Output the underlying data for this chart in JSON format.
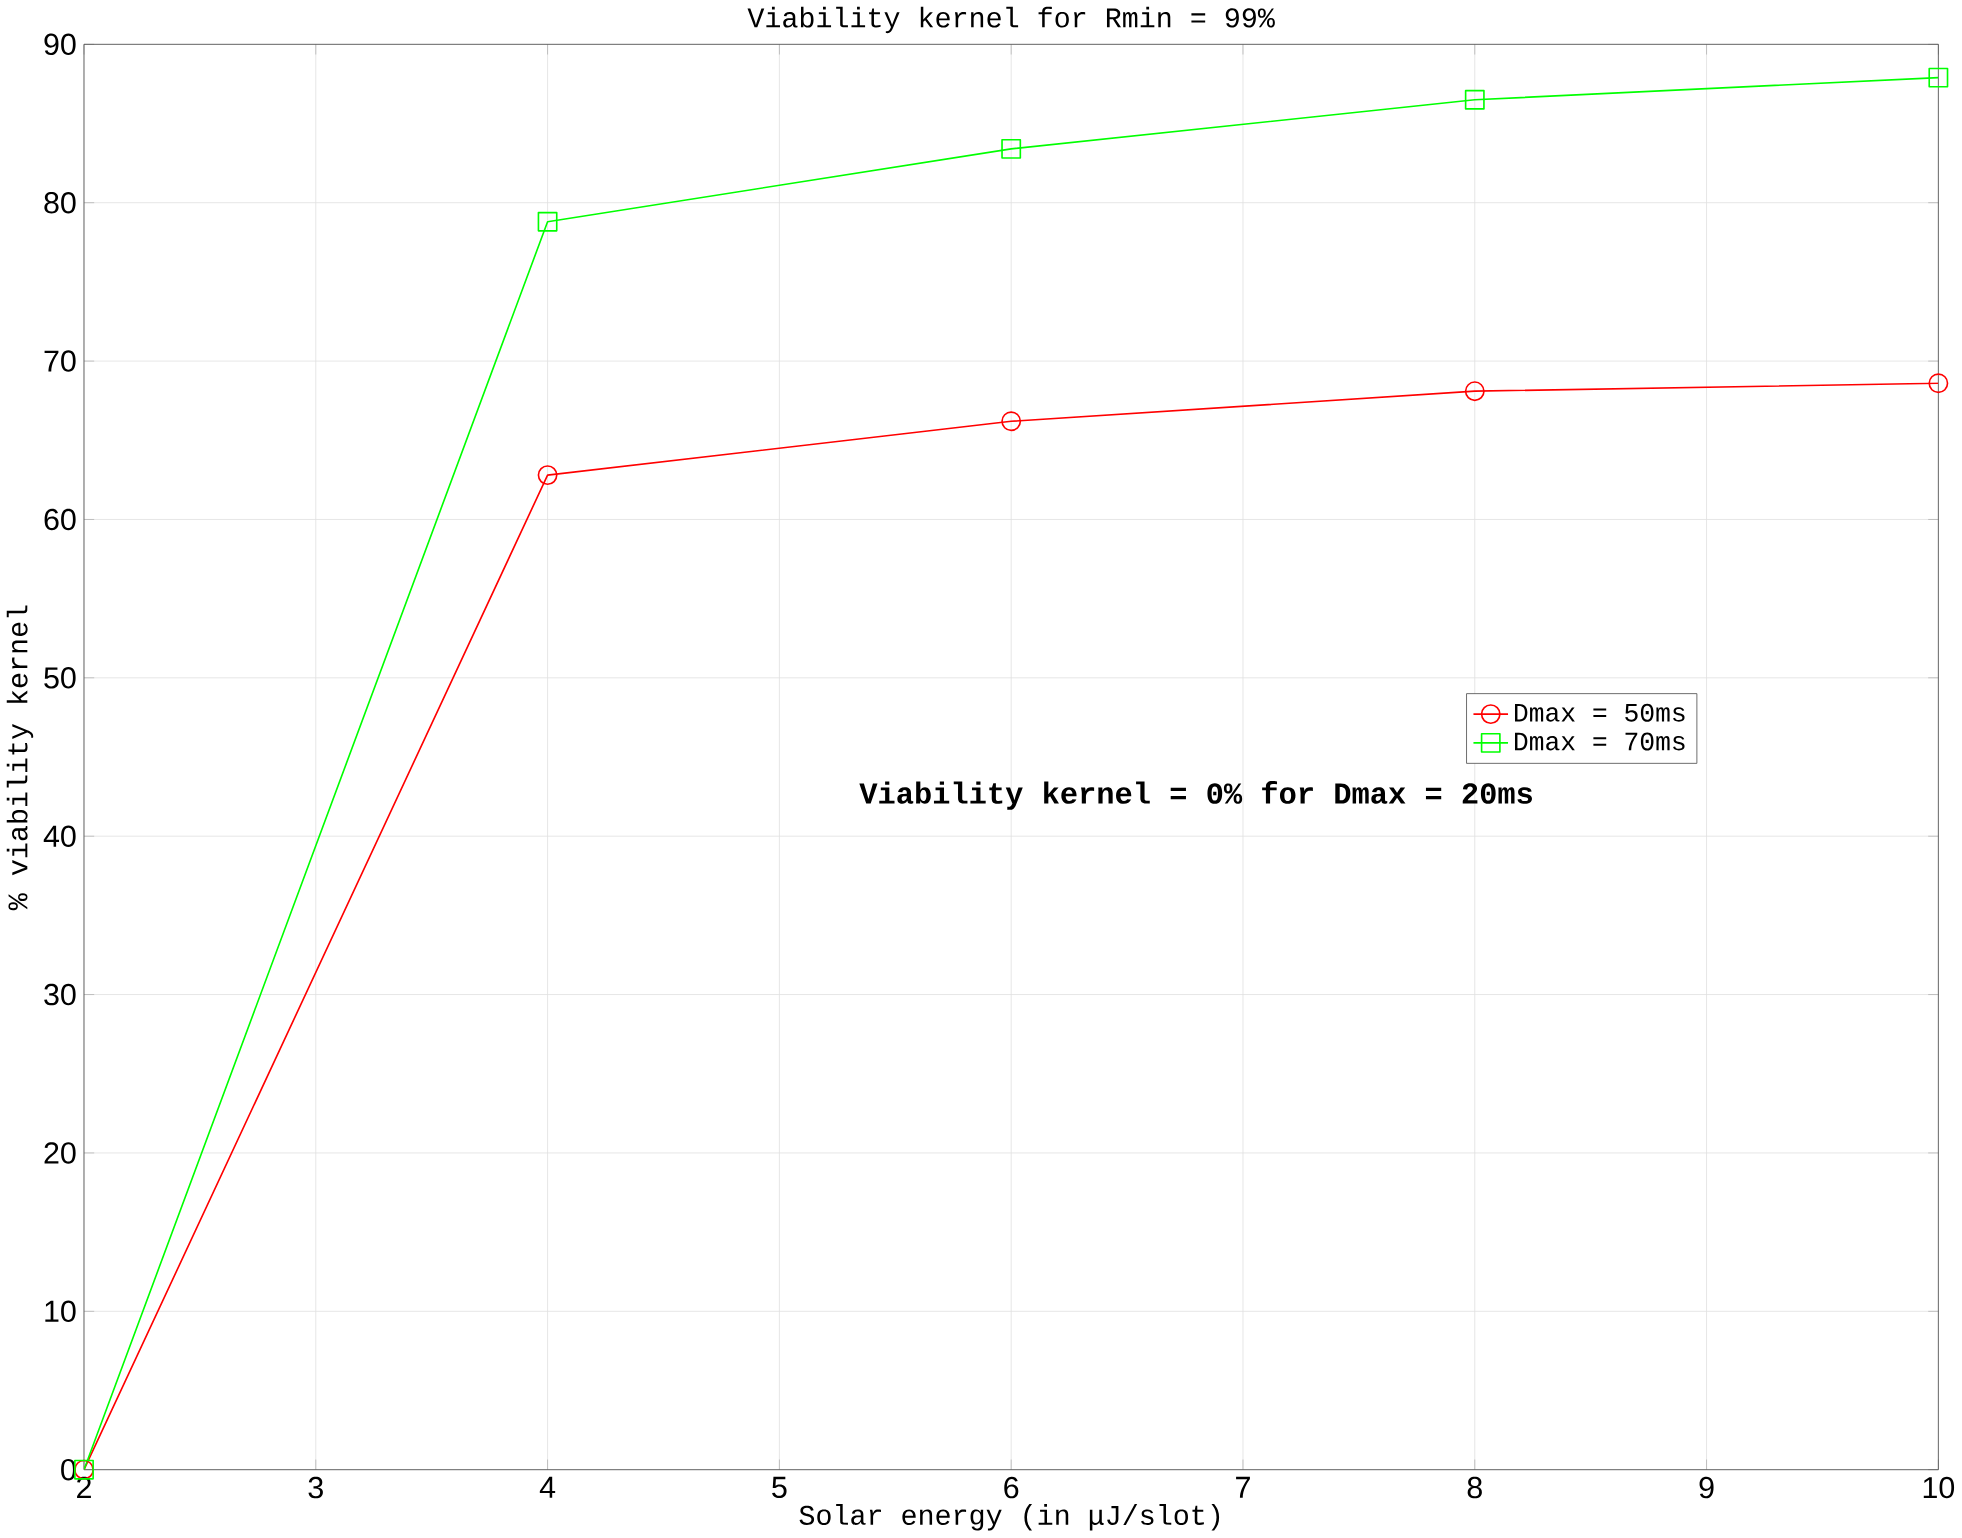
{
  "chart_data": {
    "type": "line",
    "title": "Viability kernel for Rmin = 99%",
    "xlabel": "Solar energy (in μJ/slot)",
    "ylabel": "% viability kernel",
    "x": [
      2,
      4,
      6,
      8,
      10
    ],
    "series": [
      {
        "name": "Dmax = 50ms",
        "color": "#ff0000",
        "marker": "circle",
        "values": [
          0,
          62.8,
          66.2,
          68.1,
          68.6
        ]
      },
      {
        "name": "Dmax = 70ms",
        "color": "#00ff00",
        "marker": "square",
        "values": [
          0,
          78.8,
          83.4,
          86.5,
          87.9
        ]
      }
    ],
    "xlim": [
      2,
      10
    ],
    "xticks": [
      2,
      3,
      4,
      5,
      6,
      7,
      8,
      9,
      10
    ],
    "ylim": [
      0,
      90
    ],
    "yticks": [
      0,
      10,
      20,
      30,
      40,
      50,
      60,
      70,
      80,
      90
    ],
    "grid": true,
    "legend": "right",
    "line_style": "solid",
    "annotations": [
      "Viability kernel = 0% for Dmax = 20ms"
    ]
  }
}
